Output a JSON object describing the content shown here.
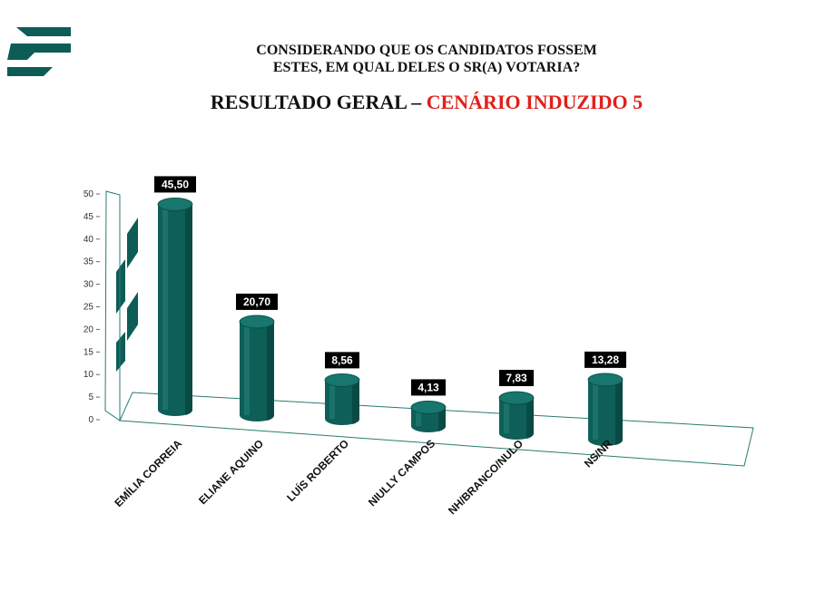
{
  "header": {
    "question_line1": "CONSIDERANDO QUE OS CANDIDATOS FOSSEM",
    "question_line2": "ESTES, EM QUAL DELES O SR(A) VOTARIA?",
    "title_main": "RESULTADO GERAL – ",
    "title_highlight": "CENÁRIO INDUZIDO 5"
  },
  "logo": {
    "icon": "brand-logo-stripes",
    "color": "#0d5c56"
  },
  "chart_data": {
    "type": "bar",
    "style": "3d-cylinder",
    "categories": [
      "EMÍLIA CORREIA",
      "ELIANE AQUINO",
      "LUÍS ROBERTO",
      "NIULLY CAMPOS",
      "NH/BRANCO/NULO",
      "NS/NR"
    ],
    "values": [
      45.5,
      20.7,
      8.56,
      4.13,
      7.83,
      13.28
    ],
    "data_labels": [
      "45,50",
      "20,70",
      "8,56",
      "4,13",
      "7,83",
      "13,28"
    ],
    "yticks": [
      "0",
      "5",
      "10",
      "15",
      "20",
      "25",
      "30",
      "35",
      "40",
      "45",
      "50"
    ],
    "ylim": [
      0,
      50
    ],
    "grid": false,
    "bar_color": "#0e5f58",
    "label_bg_color": "#000000"
  }
}
